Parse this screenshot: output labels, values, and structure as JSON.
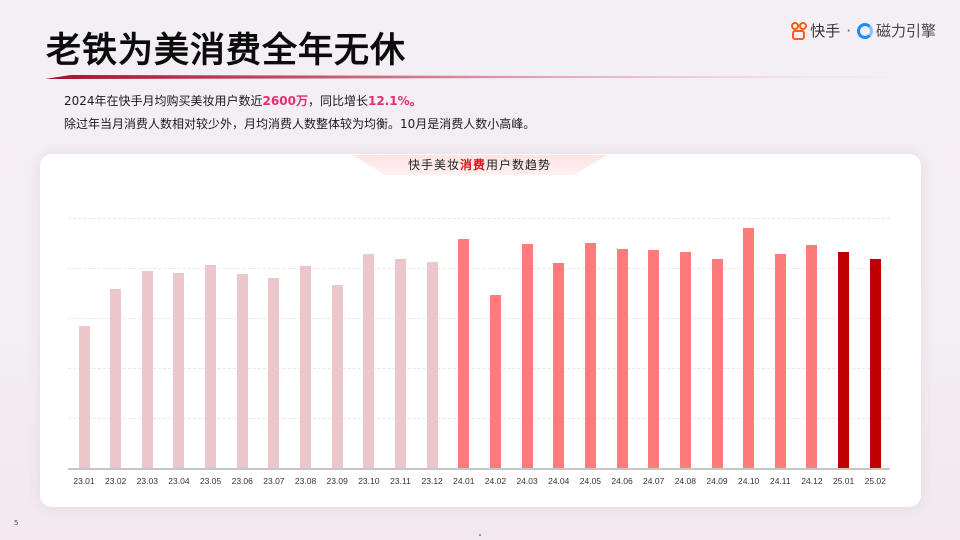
{
  "header": {
    "title": "老铁为美消费全年无休",
    "logo_brand": "快手",
    "logo_separator": "·",
    "logo_product": "磁力引擎"
  },
  "description": {
    "line1_prefix": "2024年在快手月均购买美妆用户数近",
    "line1_highlight1": "2600万",
    "line1_middle": "，同比增长",
    "line1_highlight2": "12.1%",
    "line1_suffix": "。",
    "line2": "除过年当月消费人数相对较少外，月均消费人数整体较为均衡。10月是消费人数小高峰。"
  },
  "chart_title": {
    "prefix": "快手美妆",
    "highlight": "消费",
    "suffix": "用户数趋势"
  },
  "page_number": "5",
  "colors": {
    "bar_2023": "#ebc6ca",
    "bar_2024": "#fe7b7b",
    "bar_2025": "#bf0000",
    "accent": "#e0316b"
  },
  "chart_data": {
    "type": "bar",
    "title": "快手美妆消费用户数趋势",
    "xlabel": "",
    "ylabel": "",
    "y_axis_labels_visible": false,
    "grid": true,
    "gridlines_relative": [
      500,
      1000,
      1500,
      2000,
      2500
    ],
    "ylim": [
      0,
      2500
    ],
    "unit_note": "relative values estimated from bar heights (no axis labels shown)",
    "categories": [
      "23.01",
      "23.02",
      "23.03",
      "23.04",
      "23.05",
      "23.06",
      "23.07",
      "23.08",
      "23.09",
      "23.10",
      "23.11",
      "23.12",
      "24.01",
      "24.02",
      "24.03",
      "24.04",
      "24.05",
      "24.06",
      "24.07",
      "24.08",
      "24.09",
      "24.10",
      "24.11",
      "24.12",
      "25.01",
      "25.02"
    ],
    "values": [
      1420,
      1790,
      1970,
      1950,
      2030,
      1940,
      1900,
      2020,
      1830,
      2140,
      2090,
      2060,
      2290,
      1730,
      2240,
      2050,
      2250,
      2190,
      2180,
      2160,
      2090,
      2400,
      2140,
      2230,
      2160,
      2090
    ],
    "series_groups": [
      {
        "name": "2023",
        "range": [
          0,
          11
        ],
        "color": "#ebc6ca"
      },
      {
        "name": "2024",
        "range": [
          12,
          23
        ],
        "color": "#fe7b7b"
      },
      {
        "name": "2025",
        "range": [
          24,
          25
        ],
        "color": "#bf0000"
      }
    ],
    "legend": null
  }
}
